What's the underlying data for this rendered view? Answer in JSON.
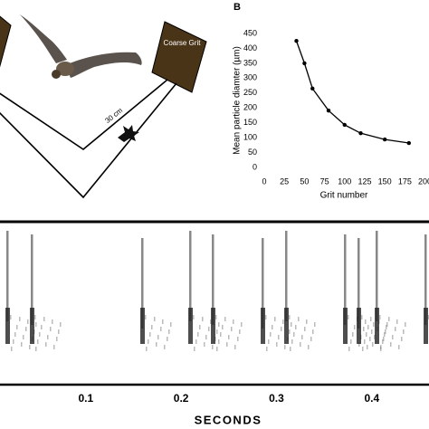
{
  "panel_a": {
    "box_label": "Coarse Grit",
    "distance_label": "30 cm"
  },
  "chart_data": [
    {
      "type": "line",
      "title": "B",
      "x_label": "Grit number",
      "y_label": "Mean particle diamter (µm)",
      "x": [
        40,
        50,
        60,
        80,
        100,
        120,
        150,
        180
      ],
      "series": [
        {
          "color": "#000000",
          "values": [
            425,
            350,
            265,
            191,
            143,
            115,
            94,
            82
          ]
        }
      ],
      "xlim": [
        0,
        205
      ],
      "ylim": [
        0,
        450
      ],
      "xticks": [
        0,
        25,
        50,
        75,
        100,
        125,
        150,
        175,
        200
      ],
      "yticks": [
        0,
        50,
        100,
        150,
        200,
        250,
        300,
        350,
        400,
        450
      ]
    },
    {
      "type": "spectrogram",
      "x_label": "SECONDS",
      "xlim": [
        0.01,
        0.46
      ],
      "xticks": [
        0.1,
        0.2,
        0.3,
        0.4
      ]
    }
  ]
}
